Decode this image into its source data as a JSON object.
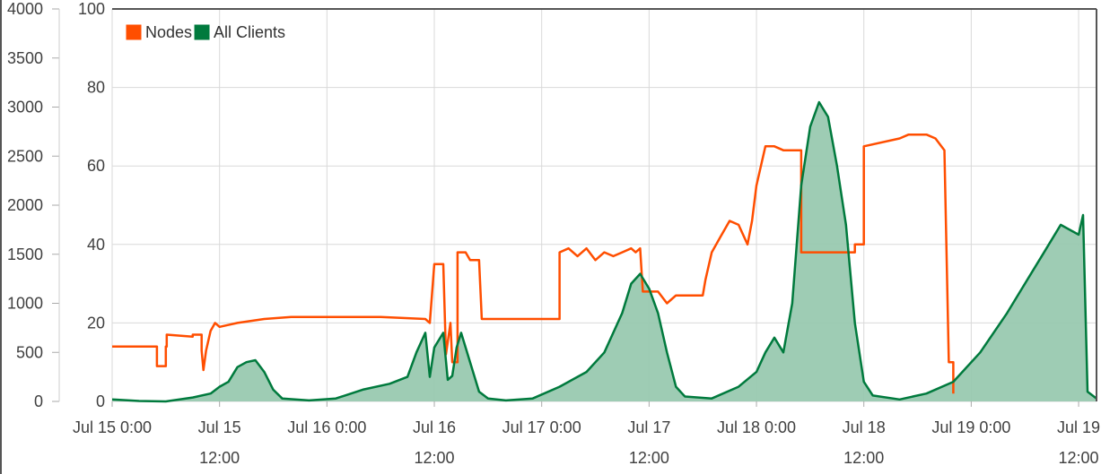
{
  "chart_data": {
    "type": "line",
    "title": "",
    "xlabel": "",
    "ylabel": "",
    "grid": true,
    "legend_position": "top-left",
    "x_unit": "hours since Jul 15 0:00",
    "x_range": [
      0,
      110
    ],
    "x_ticks": [
      {
        "x": 0,
        "line1": "Jul 15 0:00",
        "line2": ""
      },
      {
        "x": 12,
        "line1": "Jul 15",
        "line2": "12:00"
      },
      {
        "x": 24,
        "line1": "Jul 16 0:00",
        "line2": ""
      },
      {
        "x": 36,
        "line1": "Jul 16",
        "line2": "12:00"
      },
      {
        "x": 48,
        "line1": "Jul 17 0:00",
        "line2": ""
      },
      {
        "x": 60,
        "line1": "Jul 17",
        "line2": "12:00"
      },
      {
        "x": 72,
        "line1": "Jul 18 0:00",
        "line2": ""
      },
      {
        "x": 84,
        "line1": "Jul 18",
        "line2": "12:00"
      },
      {
        "x": 96,
        "line1": "Jul 19 0:00",
        "line2": ""
      },
      {
        "x": 108,
        "line1": "Jul 19",
        "line2": "12:00"
      }
    ],
    "y_left": {
      "range": [
        0,
        4000
      ],
      "ticks": [
        0,
        500,
        1000,
        1500,
        2000,
        2500,
        3000,
        3500,
        4000
      ]
    },
    "y_right": {
      "range": [
        0,
        100
      ],
      "ticks": [
        0,
        20,
        40,
        60,
        80,
        100
      ]
    },
    "series": [
      {
        "name": "Nodes",
        "color": "#ff4e00",
        "axis": "right",
        "style": "line",
        "points": [
          [
            0,
            14
          ],
          [
            5,
            14
          ],
          [
            5,
            9
          ],
          [
            6,
            9
          ],
          [
            6,
            14
          ],
          [
            6.1,
            14
          ],
          [
            6.1,
            17
          ],
          [
            9,
            16.5
          ],
          [
            9,
            17
          ],
          [
            10,
            17
          ],
          [
            10,
            13
          ],
          [
            10.2,
            8
          ],
          [
            10.5,
            13
          ],
          [
            11,
            18
          ],
          [
            11.5,
            20
          ],
          [
            12,
            19
          ],
          [
            14,
            20
          ],
          [
            17,
            21
          ],
          [
            20,
            21.5
          ],
          [
            30,
            21.5
          ],
          [
            35,
            21
          ],
          [
            35.5,
            20
          ],
          [
            36,
            35
          ],
          [
            37,
            35
          ],
          [
            37.3,
            12
          ],
          [
            37.8,
            20
          ],
          [
            38,
            10
          ],
          [
            38.6,
            10
          ],
          [
            38.6,
            38
          ],
          [
            39.5,
            38
          ],
          [
            40,
            36
          ],
          [
            41,
            36
          ],
          [
            41.3,
            21
          ],
          [
            50,
            21
          ],
          [
            50,
            38
          ],
          [
            51,
            39
          ],
          [
            52,
            37
          ],
          [
            53,
            39
          ],
          [
            54,
            36
          ],
          [
            55,
            38
          ],
          [
            56,
            37
          ],
          [
            57,
            38
          ],
          [
            58,
            39
          ],
          [
            58.5,
            38
          ],
          [
            59,
            39
          ],
          [
            59.3,
            28
          ],
          [
            61,
            28
          ],
          [
            62,
            25
          ],
          [
            63,
            27
          ],
          [
            66,
            27
          ],
          [
            66.3,
            31
          ],
          [
            67,
            38
          ],
          [
            68,
            42
          ],
          [
            69,
            46
          ],
          [
            70,
            45
          ],
          [
            71,
            40
          ],
          [
            71.5,
            46
          ],
          [
            72,
            55
          ],
          [
            73,
            65
          ],
          [
            74,
            65
          ],
          [
            75,
            64
          ],
          [
            77,
            64
          ],
          [
            77,
            38
          ],
          [
            80,
            38
          ],
          [
            83,
            38
          ],
          [
            83,
            40
          ],
          [
            84,
            40
          ],
          [
            84,
            65
          ],
          [
            88,
            67
          ],
          [
            89,
            68
          ],
          [
            91,
            68
          ],
          [
            92,
            67
          ],
          [
            93,
            64
          ],
          [
            93.5,
            10
          ],
          [
            94,
            10
          ],
          [
            94,
            2
          ]
        ]
      },
      {
        "name": "All Clients",
        "color": "#007a3d",
        "fill": "#99c9b0",
        "axis": "left",
        "style": "area",
        "points": [
          [
            0,
            20
          ],
          [
            3,
            5
          ],
          [
            6,
            0
          ],
          [
            9,
            40
          ],
          [
            11,
            80
          ],
          [
            12,
            150
          ],
          [
            13,
            200
          ],
          [
            14,
            350
          ],
          [
            15,
            400
          ],
          [
            16,
            420
          ],
          [
            17,
            300
          ],
          [
            18,
            120
          ],
          [
            19,
            30
          ],
          [
            22,
            10
          ],
          [
            25,
            30
          ],
          [
            28,
            120
          ],
          [
            31,
            180
          ],
          [
            33,
            250
          ],
          [
            34,
            500
          ],
          [
            35,
            700
          ],
          [
            35.5,
            250
          ],
          [
            36,
            550
          ],
          [
            37,
            700
          ],
          [
            37.5,
            220
          ],
          [
            38,
            260
          ],
          [
            38.5,
            550
          ],
          [
            39,
            700
          ],
          [
            40,
            400
          ],
          [
            41,
            100
          ],
          [
            42,
            30
          ],
          [
            44,
            10
          ],
          [
            47,
            30
          ],
          [
            50,
            150
          ],
          [
            53,
            300
          ],
          [
            55,
            500
          ],
          [
            57,
            900
          ],
          [
            58,
            1200
          ],
          [
            59,
            1300
          ],
          [
            60,
            1150
          ],
          [
            61,
            900
          ],
          [
            62,
            500
          ],
          [
            63,
            150
          ],
          [
            64,
            50
          ],
          [
            67,
            30
          ],
          [
            70,
            150
          ],
          [
            72,
            300
          ],
          [
            73,
            500
          ],
          [
            74,
            650
          ],
          [
            75,
            500
          ],
          [
            76,
            1000
          ],
          [
            77,
            2200
          ],
          [
            78,
            2800
          ],
          [
            79,
            3050
          ],
          [
            80,
            2900
          ],
          [
            81,
            2400
          ],
          [
            82,
            1800
          ],
          [
            83,
            800
          ],
          [
            84,
            200
          ],
          [
            85,
            60
          ],
          [
            88,
            20
          ],
          [
            91,
            80
          ],
          [
            94,
            200
          ],
          [
            97,
            500
          ],
          [
            100,
            900
          ],
          [
            102,
            1200
          ],
          [
            104,
            1500
          ],
          [
            106,
            1800
          ],
          [
            108,
            1700
          ],
          [
            108.5,
            1900
          ],
          [
            109,
            100
          ],
          [
            110,
            30
          ]
        ]
      }
    ]
  }
}
